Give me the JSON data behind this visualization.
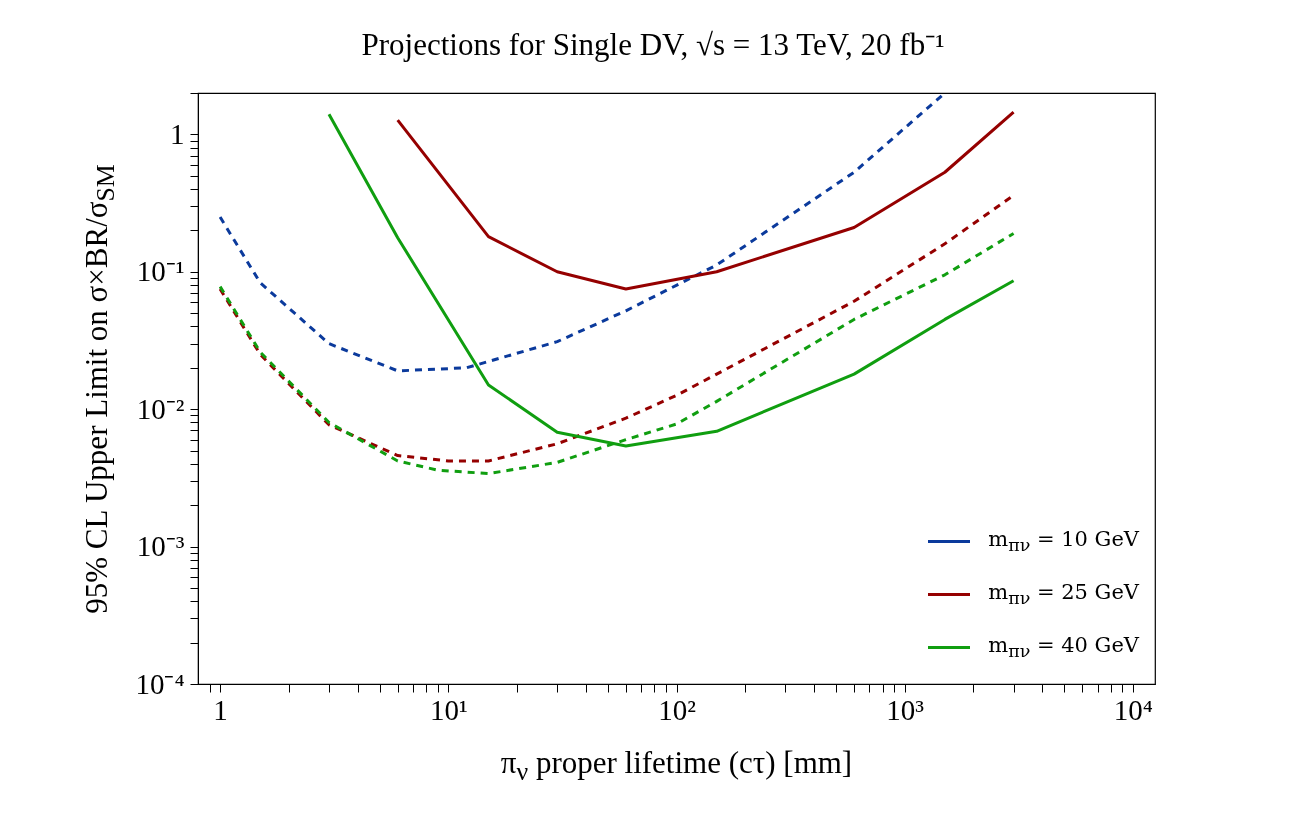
{
  "chart_data": {
    "type": "line",
    "title": "Projections for Single DV, √s  = 13 TeV,  20 fb⁻¹",
    "xlabel": "π$_{ν}$ proper lifetime (cτ) [mm]",
    "ylabel": "95% CL Upper Limit on σ×BR/σ$_{SM}$",
    "log": "xy",
    "grid": false,
    "legend": "bottom right",
    "marker": "none",
    "xlim": [
      0.8,
      12500
    ],
    "ylim": [
      0.0001,
      2
    ],
    "xticks": [
      {
        "value": 0.9,
        "label": null
      },
      1,
      {
        "value": 2,
        "label": null
      },
      {
        "value": 3,
        "label": null
      },
      {
        "value": 4,
        "label": null
      },
      {
        "value": 5,
        "label": null
      },
      {
        "value": 6,
        "label": null
      },
      {
        "value": 7,
        "label": null
      },
      {
        "value": 8,
        "label": null
      },
      {
        "value": 9,
        "label": null
      },
      {
        "value": 10,
        "label": "10¹"
      },
      {
        "value": 20,
        "label": null
      },
      {
        "value": 30,
        "label": null
      },
      {
        "value": 40,
        "label": null
      },
      {
        "value": 50,
        "label": null
      },
      {
        "value": 60,
        "label": null
      },
      {
        "value": 70,
        "label": null
      },
      {
        "value": 80,
        "label": null
      },
      {
        "value": 90,
        "label": null
      },
      {
        "value": 100,
        "label": "10²"
      },
      {
        "value": 200,
        "label": null
      },
      {
        "value": 300,
        "label": null
      },
      {
        "value": 400,
        "label": null
      },
      {
        "value": 500,
        "label": null
      },
      {
        "value": 600,
        "label": null
      },
      {
        "value": 700,
        "label": null
      },
      {
        "value": 800,
        "label": null
      },
      {
        "value": 900,
        "label": null
      },
      {
        "value": 1000,
        "label": "10³"
      },
      {
        "value": 2000,
        "label": null
      },
      {
        "value": 3000,
        "label": null
      },
      {
        "value": 4000,
        "label": null
      },
      {
        "value": 5000,
        "label": null
      },
      {
        "value": 6000,
        "label": null
      },
      {
        "value": 7000,
        "label": null
      },
      {
        "value": 8000,
        "label": null
      },
      {
        "value": 9000,
        "label": null
      },
      {
        "value": 10000,
        "label": "10⁴"
      }
    ],
    "yticks": [
      {
        "value": 0.0001,
        "label": "10⁻⁴"
      },
      {
        "value": 0.0002,
        "label": null
      },
      {
        "value": 0.0003,
        "label": null
      },
      {
        "value": 0.0004,
        "label": null
      },
      {
        "value": 0.0005,
        "label": null
      },
      {
        "value": 0.0006,
        "label": null
      },
      {
        "value": 0.0007,
        "label": null
      },
      {
        "value": 0.0008,
        "label": null
      },
      {
        "value": 0.0009,
        "label": null
      },
      {
        "value": 0.001,
        "label": "10⁻³"
      },
      {
        "value": 0.002,
        "label": null
      },
      {
        "value": 0.003,
        "label": null
      },
      {
        "value": 0.004,
        "label": null
      },
      {
        "value": 0.005,
        "label": null
      },
      {
        "value": 0.006,
        "label": null
      },
      {
        "value": 0.007,
        "label": null
      },
      {
        "value": 0.008,
        "label": null
      },
      {
        "value": 0.009,
        "label": null
      },
      {
        "value": 0.01,
        "label": "10⁻²"
      },
      {
        "value": 0.02,
        "label": null
      },
      {
        "value": 0.03,
        "label": null
      },
      {
        "value": 0.04,
        "label": null
      },
      {
        "value": 0.05,
        "label": null
      },
      {
        "value": 0.06,
        "label": null
      },
      {
        "value": 0.07,
        "label": null
      },
      {
        "value": 0.08,
        "label": null
      },
      {
        "value": 0.09,
        "label": null
      },
      {
        "value": 0.1,
        "label": "10⁻¹"
      },
      {
        "value": 0.2,
        "label": null
      },
      {
        "value": 0.3,
        "label": null
      },
      {
        "value": 0.4,
        "label": null
      },
      {
        "value": 0.5,
        "label": null
      },
      {
        "value": 0.6,
        "label": null
      },
      {
        "value": 0.7,
        "label": null
      },
      {
        "value": 0.8,
        "label": null
      },
      {
        "value": 0.9,
        "label": null
      },
      1,
      {
        "value": 2,
        "label": null
      }
    ],
    "series": [
      {
        "name": "m$_{πν}$ = 10 GeV",
        "color": "#0b3a9c",
        "line_style": "dashed",
        "x": [
          1,
          1.5,
          3,
          6,
          12,
          30,
          60,
          150,
          600,
          1500
        ],
        "values": [
          0.25,
          0.083,
          0.03,
          0.019,
          0.02,
          0.031,
          0.052,
          0.112,
          0.53,
          2.0
        ]
      },
      {
        "name": "m$_{πν}$ = 25 GeV",
        "color": "#950000",
        "line_style": "solid",
        "x": [
          6,
          15,
          30,
          60,
          150,
          600,
          1500,
          3000
        ],
        "values": [
          1.27,
          0.18,
          0.1,
          0.075,
          0.1,
          0.21,
          0.53,
          1.45
        ]
      },
      {
        "name": "m$_{πν}$ = 40 GeV",
        "color": "#109e10",
        "line_style": "solid",
        "x": [
          3,
          6,
          15,
          30,
          60,
          150,
          600,
          1500,
          3000
        ],
        "values": [
          1.4,
          0.177,
          0.015,
          0.0068,
          0.0054,
          0.0069,
          0.018,
          0.045,
          0.086
        ]
      },
      {
        "color": "#950000",
        "line_style": "dashed",
        "x": [
          1,
          1.5,
          3,
          6,
          10,
          15,
          30,
          60,
          100,
          150,
          600,
          1500,
          3000
        ],
        "values": [
          0.075,
          0.025,
          0.0077,
          0.0046,
          0.0042,
          0.0042,
          0.0056,
          0.0086,
          0.0126,
          0.018,
          0.061,
          0.16,
          0.36
        ]
      },
      {
        "color": "#109e10",
        "line_style": "dashed",
        "x": [
          1,
          1.5,
          3,
          6,
          9,
          15,
          30,
          60,
          100,
          150,
          600,
          1500,
          3000
        ],
        "values": [
          0.078,
          0.026,
          0.008,
          0.0042,
          0.0036,
          0.0034,
          0.0041,
          0.006,
          0.0078,
          0.0114,
          0.045,
          0.095,
          0.19
        ]
      }
    ]
  }
}
